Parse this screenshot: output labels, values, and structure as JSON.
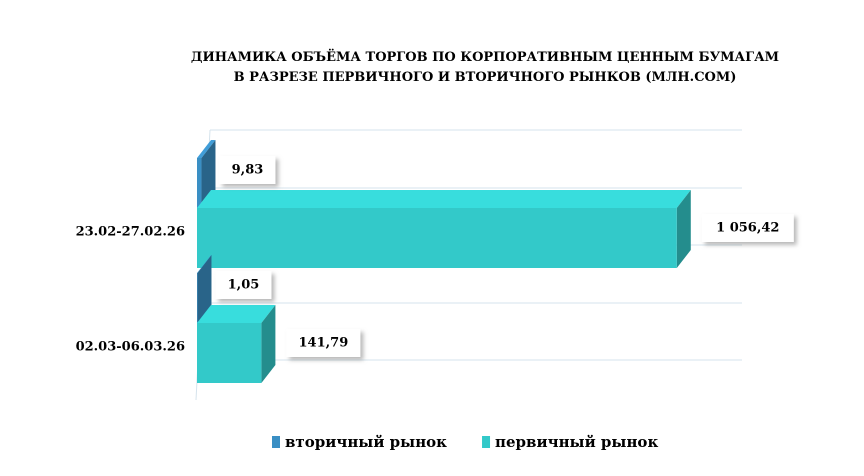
{
  "chart_data": {
    "type": "bar3d",
    "orientation": "horizontal",
    "title": "ДИНАМИКА ОБЪЁМА ТОРГОВ ПО КОРПОРАТИВНЫМ ЦЕННЫМ БУМАГАМ\nВ РАЗРЕЗЕ ПЕРВИЧНОГО И ВТОРИЧНОГО РЫНКОВ  (МЛН.СОМ)",
    "categories": [
      "23.02-27.02.26",
      "02.03-06.03.26"
    ],
    "series": [
      {
        "name": "вторичный рынок",
        "color": "#3a8fc4",
        "values": [
          9.83,
          1.05
        ],
        "value_labels": [
          "9,83",
          "1,05"
        ]
      },
      {
        "name": "первичный рынок",
        "color": "#33c9c9",
        "values": [
          1056.42,
          141.79
        ],
        "value_labels": [
          "1 056,42",
          "141,79"
        ]
      }
    ],
    "xlim": [
      0,
      1200
    ],
    "legend": "bottom"
  }
}
